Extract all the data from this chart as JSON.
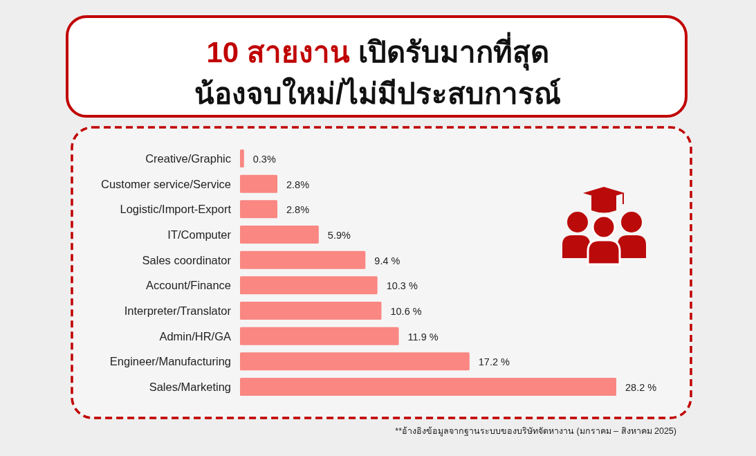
{
  "chart_data": {
    "type": "bar",
    "orientation": "horizontal",
    "title": "10 สายงาน เปิดรับมากที่สุด",
    "subtitle": "น้องจบใหม่/ไม่มีประสบการณ์",
    "categories": [
      "Creative/Graphic",
      "Customer service/Service",
      "Logistic/Import-Export",
      "IT/Computer",
      "Sales coordinator",
      "Account/Finance",
      "Interpreter/Translator",
      "Admin/HR/GA",
      "Engineer/Manufacturing",
      "Sales/Marketing"
    ],
    "values": [
      0.3,
      2.8,
      2.8,
      5.9,
      9.4,
      10.3,
      10.6,
      11.9,
      17.2,
      28.2
    ],
    "value_labels": [
      "0.3%",
      "2.8%",
      "2.8%",
      "5.9%",
      "9.4 %",
      "10.3 %",
      "10.6 %",
      "11.9 %",
      "17.2 %",
      "28.2 %"
    ],
    "color": "#fa8782",
    "annotations": [
      "**อ้างอิงข้อมูลจากฐานระบบของบริษัทจัดหางาน (มกราคม – สิงหาคม 2025)"
    ]
  }
}
